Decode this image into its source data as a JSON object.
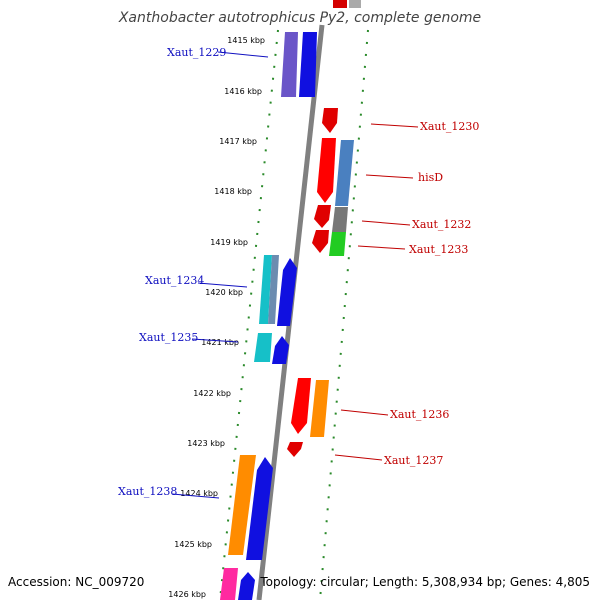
{
  "title": "Xanthobacter autotrophicus Py2, complete genome",
  "ruler": [
    "1415 kbp",
    "1416 kbp",
    "1417 kbp",
    "1418 kbp",
    "1419 kbp",
    "1420 kbp",
    "1421 kbp",
    "1422 kbp",
    "1423 kbp",
    "1424 kbp",
    "1425 kbp",
    "1426 kbp"
  ],
  "genes": [
    {
      "label": "Xaut_1229",
      "strand": "reverse",
      "color": "#1f1fd6"
    },
    {
      "label": "Xaut_1230",
      "strand": "forward",
      "color": "#d40000"
    },
    {
      "label": "hisD",
      "strand": "forward",
      "color": "#d40000"
    },
    {
      "label": "Xaut_1232",
      "strand": "forward",
      "color": "#d40000"
    },
    {
      "label": "Xaut_1233",
      "strand": "forward",
      "color": "#d40000"
    },
    {
      "label": "Xaut_1234",
      "strand": "reverse",
      "color": "#1f1fd6"
    },
    {
      "label": "Xaut_1235",
      "strand": "reverse",
      "color": "#1f1fd6"
    },
    {
      "label": "Xaut_1236",
      "strand": "forward",
      "color": "#d40000"
    },
    {
      "label": "Xaut_1237",
      "strand": "forward",
      "color": "#d40000"
    },
    {
      "label": "Xaut_1238",
      "strand": "reverse",
      "color": "#1f1fd6"
    }
  ],
  "footer": {
    "accession": "Accession: NC_009720",
    "summary": "Topology: circular; Length: 5,308,934 bp; Genes: 4,805"
  }
}
